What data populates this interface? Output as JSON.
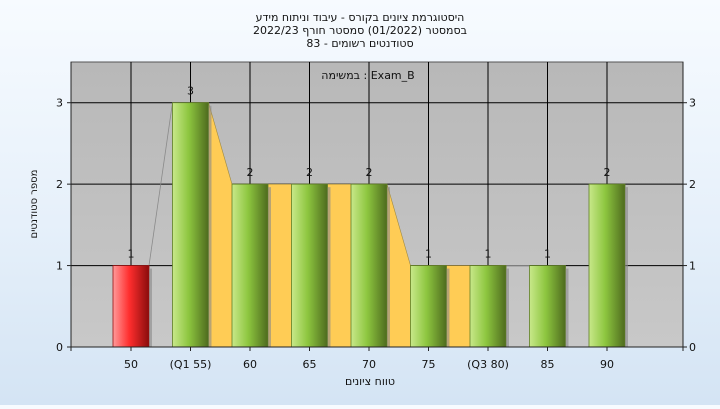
{
  "chart_data": {
    "type": "bar",
    "title_lines": [
      "היסטוגרמת ציונים בקורס - עיבוד וניתוח מידע",
      "בסמסטר  (01/2022)  סמסטר חורף 2022/23",
      "סטודנטים רשומים - 83"
    ],
    "subtitle": "במשימה : Exam_B",
    "xlabel": "טווח ציונים",
    "ylabel": "מספר סטודנטים",
    "categories": [
      "50",
      "(Q1 55)",
      "60",
      "65",
      "70",
      "75",
      "(Q3 80)",
      "85",
      "90"
    ],
    "values": [
      1,
      3,
      2,
      2,
      2,
      1,
      1,
      1,
      2
    ],
    "data_labels": [
      "1",
      "3",
      "2",
      "2",
      "2",
      "1",
      "1",
      "1",
      "2"
    ],
    "ylim": [
      0,
      3.5
    ],
    "yticks": [
      0,
      1,
      2,
      3
    ],
    "grid": true,
    "highlight_index": 0,
    "quartile_band": {
      "start_index": 1,
      "end_index": 6
    },
    "colors": {
      "bar_main": "#8dc63f",
      "bar_main_dark": "#5f7f26",
      "bar_highlight": "#ff3b3b",
      "bar_highlight_dark": "#9a1010",
      "band": "#ffcc55",
      "plot_bg": "#c0c0c0",
      "grid": "#000000"
    }
  }
}
